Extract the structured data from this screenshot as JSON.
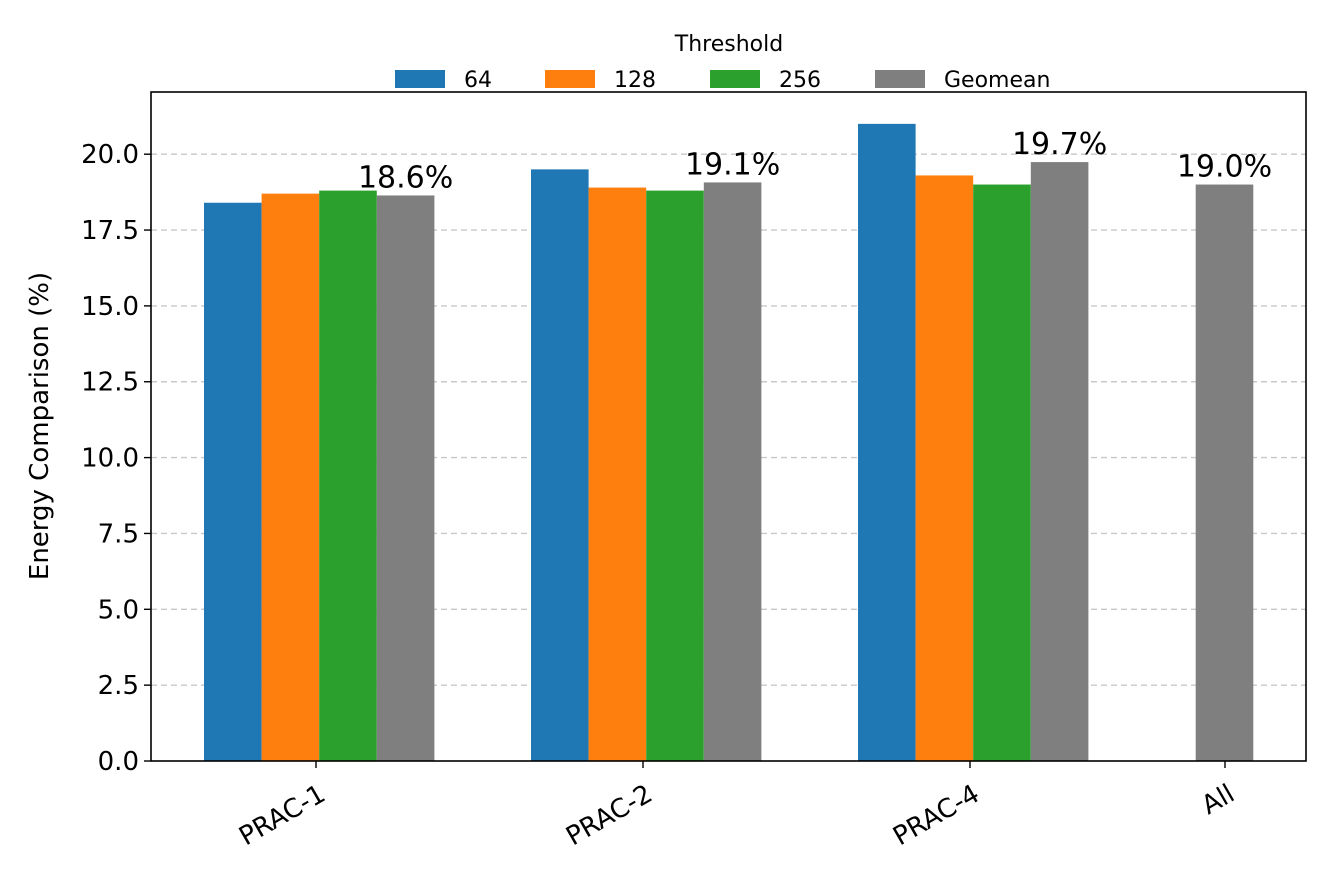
{
  "chart_data": {
    "type": "bar",
    "title": "",
    "xlabel": "",
    "ylabel": "Energy Comparison (%)",
    "ylim": [
      0,
      22.05
    ],
    "yticks": [
      "0.0",
      "2.5",
      "5.0",
      "7.5",
      "10.0",
      "12.5",
      "15.0",
      "17.5",
      "20.0"
    ],
    "ytick_values": [
      0,
      2.5,
      5,
      7.5,
      10,
      12.5,
      15,
      17.5,
      20
    ],
    "grid": "y-dashed",
    "categories": [
      "PRAC-1",
      "PRAC-2",
      "PRAC-4",
      "All"
    ],
    "legend": {
      "title": "Threshold",
      "placement": "top-center",
      "entries": [
        "64",
        "128",
        "256",
        "Geomean"
      ]
    },
    "series": [
      {
        "name": "64",
        "color": "#1f77b4",
        "values": [
          18.4,
          19.5,
          21.0,
          null
        ]
      },
      {
        "name": "128",
        "color": "#ff7f0e",
        "values": [
          18.7,
          18.9,
          19.3,
          null
        ]
      },
      {
        "name": "256",
        "color": "#2ca02c",
        "values": [
          18.8,
          18.8,
          19.0,
          null
        ]
      },
      {
        "name": "Geomean",
        "color": "#7f7f7f",
        "values": [
          18.64,
          19.07,
          19.74,
          19.0
        ]
      }
    ],
    "annotations": [
      "18.6%",
      "19.1%",
      "19.7%",
      "19.0%"
    ]
  }
}
